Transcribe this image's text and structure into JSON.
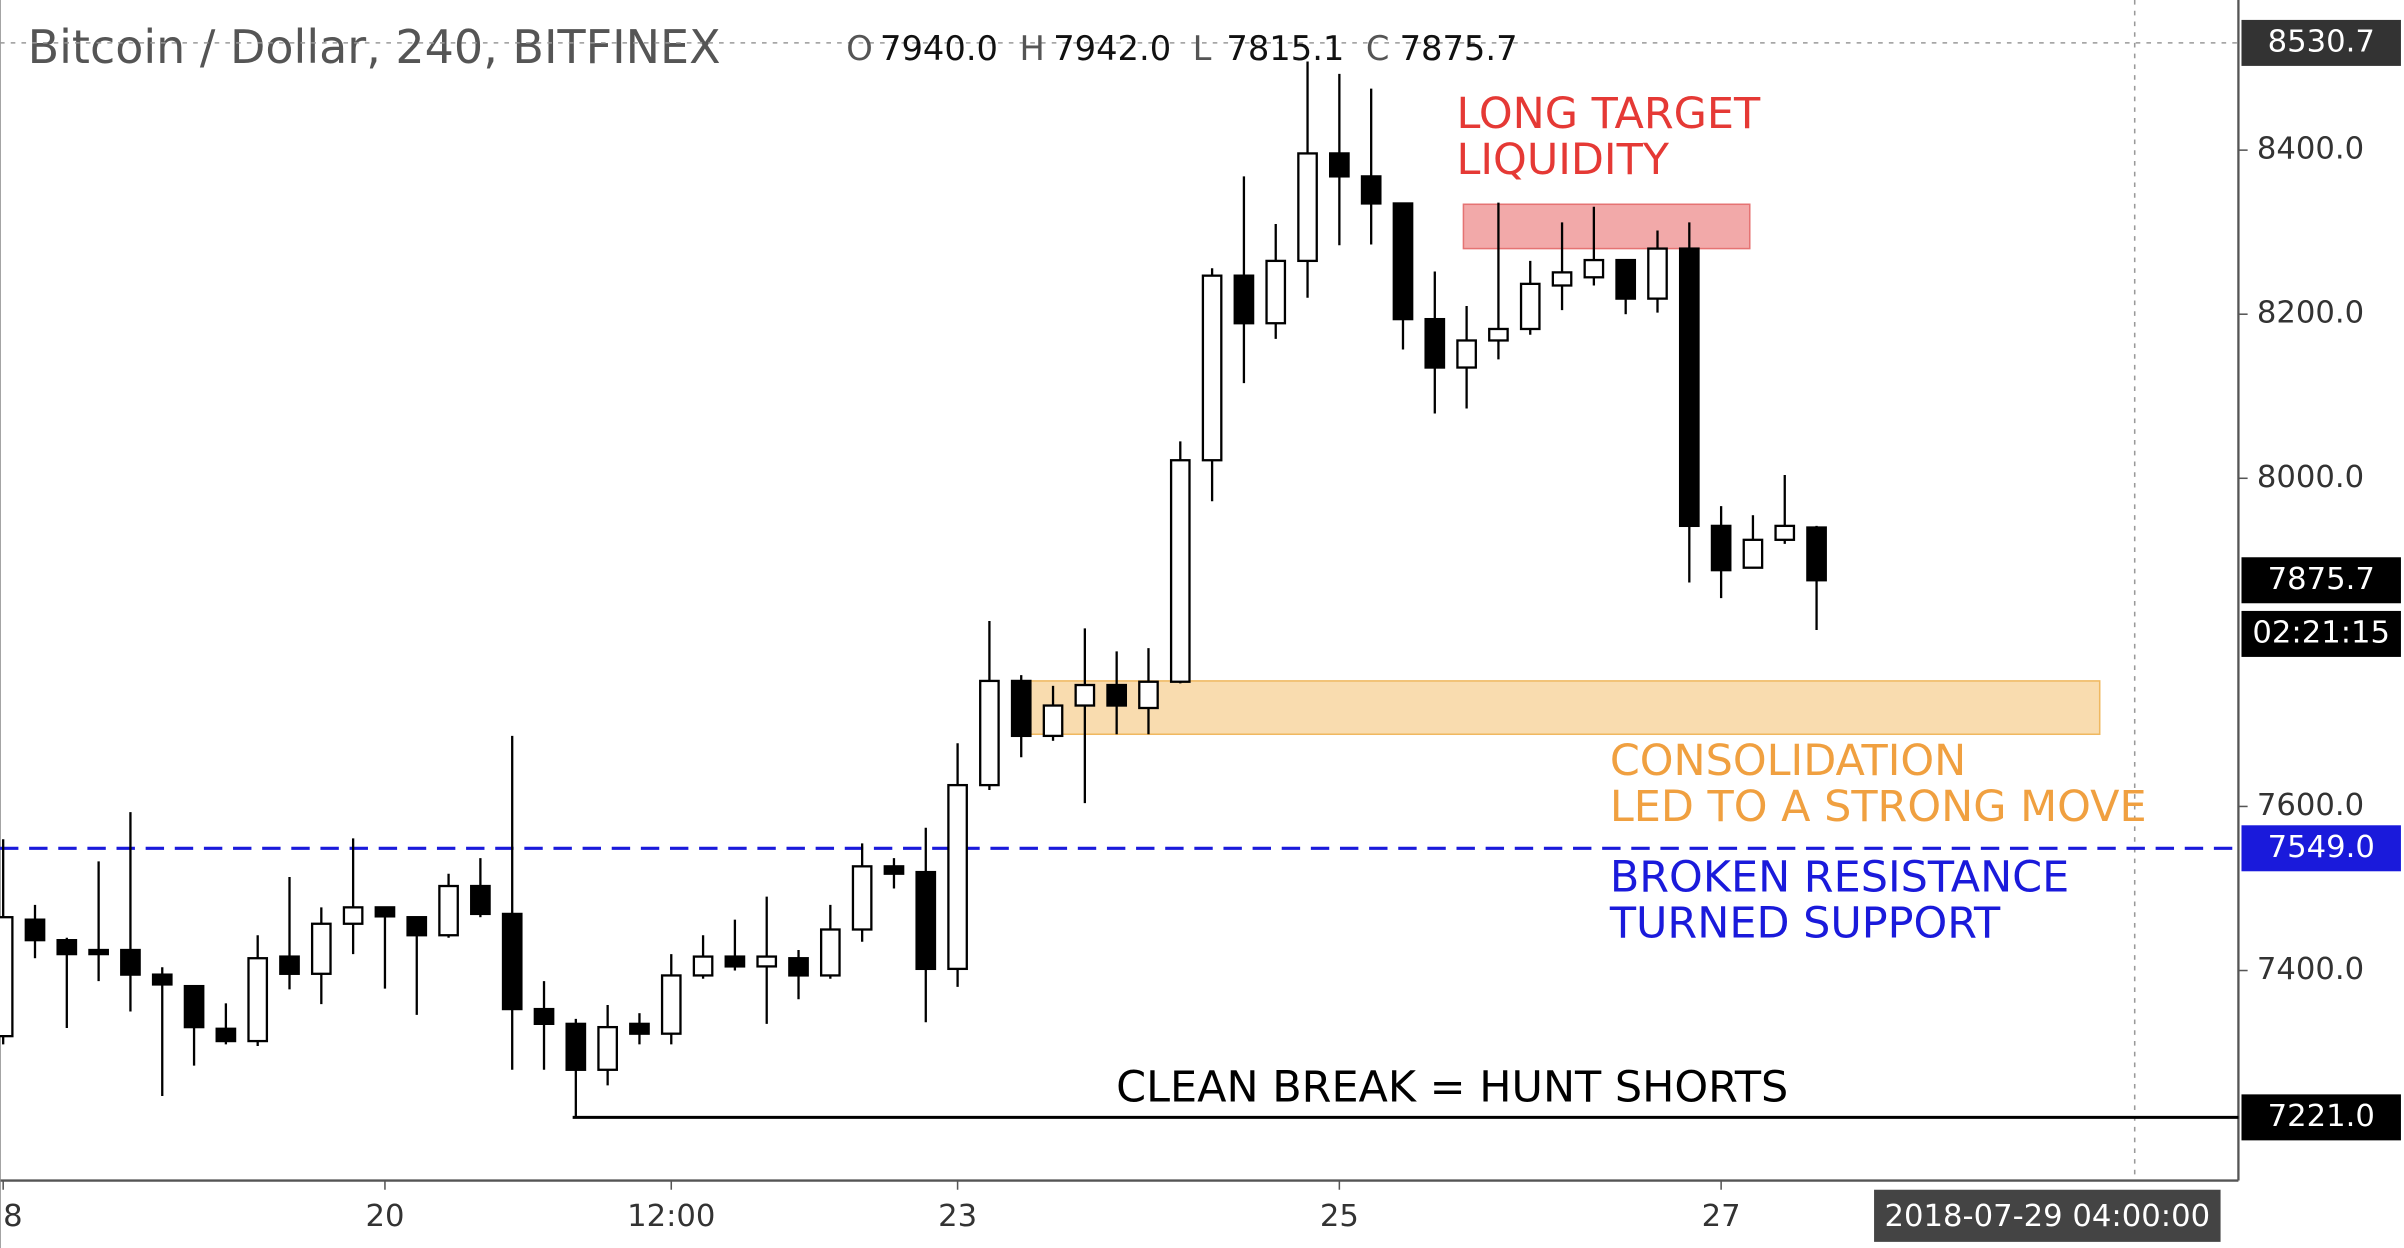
{
  "chart_data": {
    "type": "candlestick",
    "title": "Bitcoin / Dollar, 240, BITFINEX",
    "ohlc_legend": {
      "labels": [
        "O",
        "H",
        "L",
        "C"
      ],
      "value_labels": [
        "7940.0",
        "7942.0",
        "7815.1",
        "7875.7"
      ]
    },
    "x": [
      0,
      1,
      2,
      3,
      4,
      5,
      6,
      7,
      8,
      9,
      10,
      11,
      12,
      13,
      14,
      15,
      16,
      17,
      18,
      19,
      20,
      21,
      22,
      23,
      24,
      25,
      26,
      27,
      28,
      29,
      30,
      31,
      32,
      33,
      34,
      35,
      36,
      37,
      38,
      39,
      40,
      41,
      42,
      43,
      44,
      45,
      46,
      47,
      48,
      49,
      50,
      51,
      52,
      53,
      54,
      55,
      56,
      57
    ],
    "candles": {
      "open": [
        7320,
        7462,
        7437,
        7425,
        7425,
        7395,
        7381,
        7329,
        7314,
        7417,
        7396,
        7457,
        7477,
        7465,
        7443,
        7503,
        7469,
        7353,
        7335,
        7279,
        7335,
        7323,
        7394,
        7417,
        7405,
        7415,
        7394,
        7450,
        7527,
        7520,
        7402,
        7626,
        7753,
        7686,
        7723,
        7748,
        7720,
        7752,
        8022,
        8247,
        8189,
        8265,
        8396,
        8368,
        8335,
        8194,
        8135,
        8168,
        8182,
        8235,
        8245,
        8266,
        8219,
        8280,
        7942,
        7891,
        7925,
        7940
      ],
      "high": [
        7560,
        7480,
        7440,
        7533,
        7593,
        7404,
        7381,
        7360,
        7443,
        7514,
        7477,
        7561,
        7477,
        7465,
        7518,
        7537,
        7686,
        7387,
        7341,
        7358,
        7348,
        7420,
        7443,
        7462,
        7490,
        7425,
        7480,
        7555,
        7537,
        7574,
        7677,
        7826,
        7760,
        7747,
        7817,
        7789,
        7793,
        8045,
        8256,
        8368,
        8310,
        8508,
        8493,
        8475,
        8335,
        8252,
        8210,
        8336,
        8265,
        8312,
        8331,
        8266,
        8302,
        8312,
        7966,
        7955,
        8004,
        7942
      ],
      "low": [
        7310,
        7415,
        7330,
        7387,
        7350,
        7247,
        7284,
        7310,
        7308,
        7377,
        7359,
        7420,
        7378,
        7346,
        7440,
        7465,
        7279,
        7279,
        7221,
        7260,
        7310,
        7310,
        7390,
        7400,
        7335,
        7365,
        7390,
        7435,
        7500,
        7337,
        7380,
        7620,
        7660,
        7680,
        7604,
        7688,
        7688,
        7750,
        7972,
        8116,
        8170,
        8220,
        8284,
        8285,
        8157,
        8079,
        8085,
        8145,
        8175,
        8205,
        8235,
        8200,
        8202,
        7873,
        7854,
        7890,
        7920,
        7815.1
      ],
      "close": [
        7465,
        7437,
        7420,
        7420,
        7395,
        7383,
        7331,
        7314,
        7415,
        7396,
        7457,
        7477,
        7466,
        7443,
        7503,
        7469,
        7353,
        7335,
        7279,
        7331,
        7323,
        7394,
        7417,
        7405,
        7417,
        7394,
        7450,
        7527,
        7518,
        7402,
        7626,
        7753,
        7686,
        7723,
        7748,
        7723,
        7752,
        8022,
        8247,
        8189,
        8265,
        8396,
        8368,
        8335,
        8194,
        8135,
        8168,
        8182,
        8237,
        8251,
        8266,
        8219,
        8280,
        7942,
        7888,
        7925,
        7942,
        7875.7
      ],
      "up_color": "#ffffff",
      "down_color": "#000000"
    },
    "xlim": [
      -0.1,
      70.26
    ],
    "xticks": [
      {
        "value": 0,
        "label": "8"
      },
      {
        "value": 12,
        "label": "20"
      },
      {
        "value": 21,
        "label": "12:00"
      },
      {
        "value": 30,
        "label": "23"
      },
      {
        "value": 42,
        "label": "25"
      },
      {
        "value": 54,
        "label": "27"
      }
    ],
    "ylim": [
      7144,
      8583
    ],
    "yticks": [
      {
        "value": 7400,
        "label": "7400.0"
      },
      {
        "value": 7600,
        "label": "7600.0"
      },
      {
        "value": 8000,
        "label": "8000.0"
      },
      {
        "value": 8200,
        "label": "8200.0"
      },
      {
        "value": 8400,
        "label": "8400.0"
      }
    ],
    "zones": [
      {
        "x": [
          45.9,
          54.9
        ],
        "y": [
          8280,
          8334
        ],
        "color": "#f2a9a9",
        "border": "#e57373"
      },
      {
        "x": [
          31.95,
          65.9
        ],
        "y": [
          7688,
          7753
        ],
        "color": "#f9dcaf",
        "border": "#f0b860"
      }
    ],
    "price_lines": [
      {
        "value": 7549,
        "label": "7549.0",
        "color": "#1a1adb",
        "dashed": true,
        "x_start": -0.1
      },
      {
        "value": 7221,
        "label": "7221.0",
        "color": "#000000",
        "dashed": false,
        "x_start": 17.9
      }
    ],
    "annotations": [
      {
        "lines": [
          "LONG TARGET",
          "LIQUIDITY"
        ],
        "color": "#e53935"
      },
      {
        "lines": [
          "CONSOLIDATION",
          "LED TO A STRONG MOVE"
        ],
        "color": "#f0a040"
      },
      {
        "lines": [
          "BROKEN RESISTANCE",
          "TURNED SUPPORT"
        ],
        "color": "#1a1adb"
      },
      {
        "lines": [
          "CLEAN BREAK = HUNT SHORTS"
        ],
        "color": "#000000"
      }
    ],
    "last_price": {
      "value": 7875.7,
      "label": "7875.7",
      "countdown": "02:21:15"
    },
    "crosshair": {
      "x": 67,
      "price": {
        "value": 8530.7,
        "label": "8530.7"
      },
      "time": "2018-07-29 04:00:00"
    }
  }
}
